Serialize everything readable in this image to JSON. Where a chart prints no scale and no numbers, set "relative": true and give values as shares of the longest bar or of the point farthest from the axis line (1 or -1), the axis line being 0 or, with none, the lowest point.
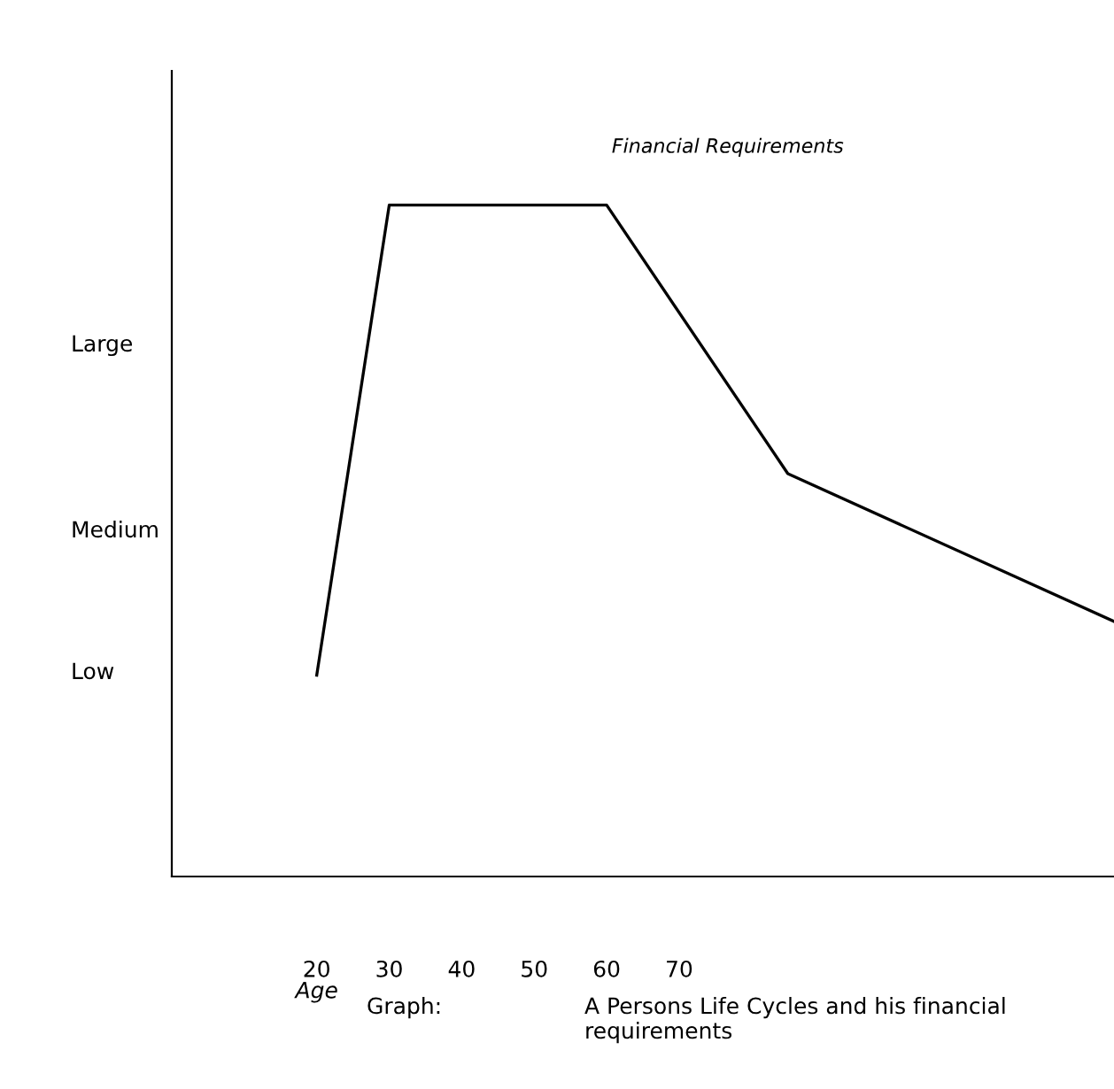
{
  "chart_data": {
    "type": "line",
    "title": "Financial Requirements",
    "xlabel": "Age",
    "x": [
      20,
      30,
      60,
      85,
      130
    ],
    "values": [
      0.3,
      1,
      1,
      0.6,
      0.38
    ],
    "relative": true,
    "color": "#000000",
    "xlim": [
      0,
      130
    ],
    "xticks": [
      20,
      30,
      40,
      50,
      60,
      70
    ],
    "grid": false,
    "marker": "none",
    "line_style": "solid",
    "annotations": [
      "Large",
      "Medium",
      "Low",
      "Graph:",
      "A Persons Life Cycles and his financial requirements"
    ]
  }
}
